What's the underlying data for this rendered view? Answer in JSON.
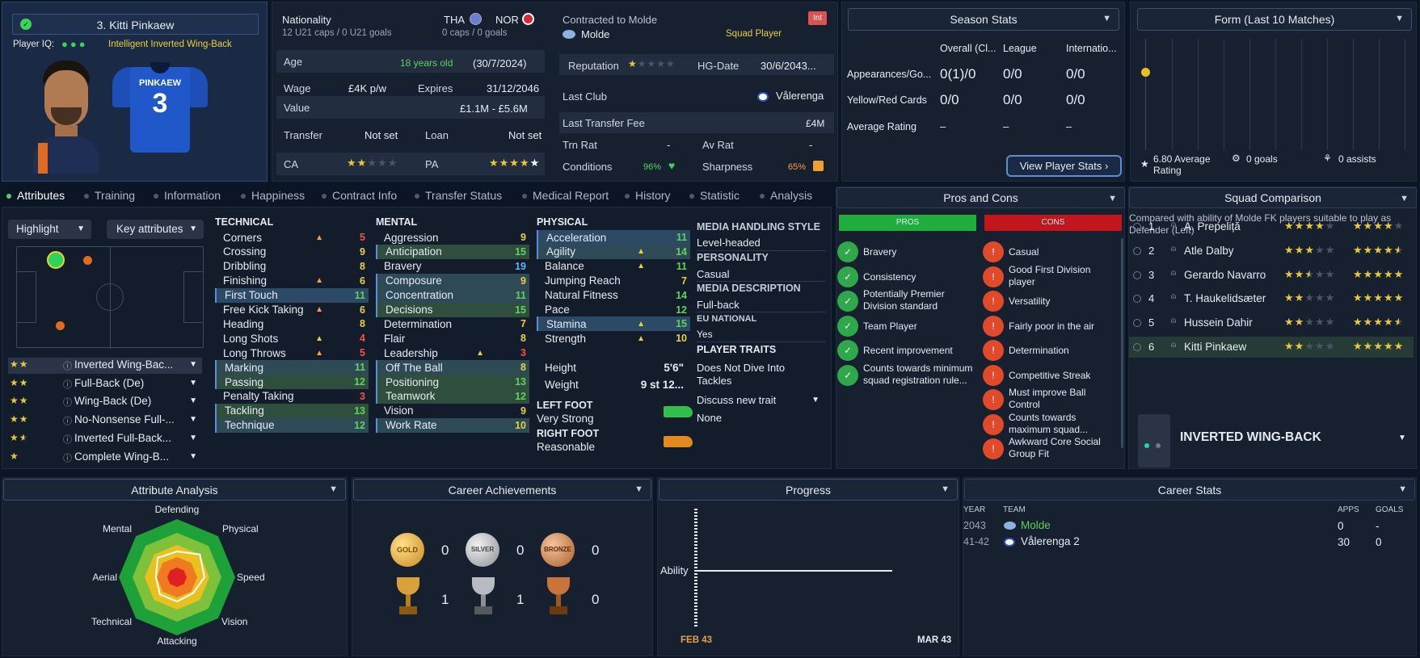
{
  "player": {
    "name": "3. Kitti Pinkaew",
    "iq_label": "Player IQ:",
    "iq_text": "Intelligent  Inverted Wing-Back",
    "shirt_name": "PINKAEW",
    "shirt_number": "3"
  },
  "info": {
    "nationality_label": "Nationality",
    "nat1": "THA",
    "nat2": "NOR",
    "u21": "12 U21 caps / 0 U21 goals",
    "caps": "0 caps / 0 goals",
    "age_label": "Age",
    "age": "18 years old",
    "dob": "(30/7/2024)",
    "wage_label": "Wage",
    "wage": "£4K p/w",
    "expires_label": "Expires",
    "expires": "31/12/2046",
    "value_label": "Value",
    "value": "£1.1M - £5.6M",
    "transfer_label": "Transfer",
    "transfer": "Not set",
    "loan_label": "Loan",
    "loan": "Not set",
    "ca_label": "CA",
    "pa_label": "PA"
  },
  "contract": {
    "label": "Contracted to Molde",
    "club": "Molde",
    "status": "Squad Player",
    "badge": "Int",
    "rep_label": "Reputation",
    "hg_label": "HG-Date",
    "hg": "30/6/2043...",
    "last_club_label": "Last Club",
    "last_club": "Vålerenga",
    "fee_label": "Last Transfer Fee",
    "fee": "£4M",
    "trn_label": "Trn Rat",
    "trn": "-",
    "av_label": "Av Rat",
    "av": "-",
    "cond_label": "Conditions",
    "cond": "96%",
    "sharp_label": "Sharpness",
    "sharp": "65%"
  },
  "season": {
    "title": "Season Stats",
    "cols": [
      "Overall (Cl...",
      "League",
      "Internatio..."
    ],
    "rows": [
      {
        "label": "Appearances/Go...",
        "v": [
          "0(1)/0",
          "0/0",
          "0/0"
        ]
      },
      {
        "label": "Yellow/Red Cards",
        "v": [
          "0/0",
          "0/0",
          "0/0"
        ]
      },
      {
        "label": "Average Rating",
        "v": [
          "–",
          "–",
          "–"
        ]
      }
    ],
    "button": "View Player Stats"
  },
  "form": {
    "title": "Form (Last 10 Matches)",
    "avg": "6.80 Average Rating",
    "goals": "0 goals",
    "assists": "0 assists"
  },
  "tabs": [
    "Attributes",
    "Training",
    "Information",
    "Happiness",
    "Contract Info",
    "Transfer Status",
    "Medical Report",
    "History",
    "Statistic",
    "Analysis"
  ],
  "left": {
    "highlight": "Highlight",
    "key": "Key attributes",
    "roles": [
      {
        "name": "Inverted Wing-Bac...",
        "stars": 2
      },
      {
        "name": "Full-Back (De)",
        "stars": 2
      },
      {
        "name": "Wing-Back (De)",
        "stars": 2
      },
      {
        "name": "No-Nonsense Full-...",
        "stars": 2
      },
      {
        "name": "Inverted Full-Back...",
        "stars": 1.5
      },
      {
        "name": "Complete Wing-B...",
        "stars": 1
      }
    ]
  },
  "technical": {
    "title": "TECHNICAL",
    "items": [
      {
        "name": "Corners",
        "v": "5",
        "c": "r",
        "arr": "up-o",
        "hl": ""
      },
      {
        "name": "Crossing",
        "v": "9",
        "c": "y",
        "arr": "",
        "hl": ""
      },
      {
        "name": "Dribbling",
        "v": "8",
        "c": "y",
        "arr": "",
        "hl": ""
      },
      {
        "name": "Finishing",
        "v": "6",
        "c": "y",
        "arr": "up-o",
        "hl": ""
      },
      {
        "name": "First Touch",
        "v": "11",
        "c": "g",
        "arr": "",
        "hl": "hl"
      },
      {
        "name": "Free Kick Taking",
        "v": "6",
        "c": "y",
        "arr": "up-o",
        "hl": ""
      },
      {
        "name": "Heading",
        "v": "8",
        "c": "y",
        "arr": "",
        "hl": ""
      },
      {
        "name": "Long Shots",
        "v": "4",
        "c": "r",
        "arr": "up-y",
        "hl": ""
      },
      {
        "name": "Long Throws",
        "v": "5",
        "c": "r",
        "arr": "up-o",
        "hl": ""
      },
      {
        "name": "Marking",
        "v": "11",
        "c": "g",
        "arr": "",
        "hl": "hlb"
      },
      {
        "name": "Passing",
        "v": "12",
        "c": "g",
        "arr": "",
        "hl": "hlg"
      },
      {
        "name": "Penalty Taking",
        "v": "3",
        "c": "r",
        "arr": "",
        "hl": ""
      },
      {
        "name": "Tackling",
        "v": "13",
        "c": "g",
        "arr": "",
        "hl": "hlg"
      },
      {
        "name": "Technique",
        "v": "12",
        "c": "g",
        "arr": "",
        "hl": "hlb"
      }
    ]
  },
  "mental": {
    "title": "MENTAL",
    "items": [
      {
        "name": "Aggression",
        "v": "9",
        "c": "y",
        "arr": "",
        "hl": ""
      },
      {
        "name": "Anticipation",
        "v": "15",
        "c": "g",
        "arr": "",
        "hl": "hlg"
      },
      {
        "name": "Bravery",
        "v": "19",
        "c": "cy",
        "arr": "",
        "hl": ""
      },
      {
        "name": "Composure",
        "v": "9",
        "c": "y",
        "arr": "",
        "hl": "hlb"
      },
      {
        "name": "Concentration",
        "v": "11",
        "c": "g",
        "arr": "",
        "hl": "hlb"
      },
      {
        "name": "Decisions",
        "v": "15",
        "c": "g",
        "arr": "",
        "hl": "hlg"
      },
      {
        "name": "Determination",
        "v": "7",
        "c": "y",
        "arr": "",
        "hl": ""
      },
      {
        "name": "Flair",
        "v": "8",
        "c": "y",
        "arr": "",
        "hl": ""
      },
      {
        "name": "Leadership",
        "v": "3",
        "c": "r",
        "arr": "up-y",
        "hl": ""
      },
      {
        "name": "Off The Ball",
        "v": "8",
        "c": "y",
        "arr": "",
        "hl": "hlb"
      },
      {
        "name": "Positioning",
        "v": "13",
        "c": "g",
        "arr": "",
        "hl": "hlg"
      },
      {
        "name": "Teamwork",
        "v": "12",
        "c": "g",
        "arr": "",
        "hl": "hlg"
      },
      {
        "name": "Vision",
        "v": "9",
        "c": "y",
        "arr": "",
        "hl": ""
      },
      {
        "name": "Work Rate",
        "v": "10",
        "c": "y",
        "arr": "",
        "hl": "hlb"
      }
    ]
  },
  "physical": {
    "title": "PHYSICAL",
    "items": [
      {
        "name": "Acceleration",
        "v": "11",
        "c": "g",
        "arr": "",
        "hl": "hl"
      },
      {
        "name": "Agility",
        "v": "14",
        "c": "g",
        "arr": "up-y",
        "hl": "hlb"
      },
      {
        "name": "Balance",
        "v": "11",
        "c": "g",
        "arr": "up-y",
        "hl": ""
      },
      {
        "name": "Jumping Reach",
        "v": "7",
        "c": "y",
        "arr": "",
        "hl": ""
      },
      {
        "name": "Natural Fitness",
        "v": "14",
        "c": "g",
        "arr": "",
        "hl": ""
      },
      {
        "name": "Pace",
        "v": "12",
        "c": "g",
        "arr": "",
        "hl": ""
      },
      {
        "name": "Stamina",
        "v": "15",
        "c": "g",
        "arr": "up-y",
        "hl": "hl"
      },
      {
        "name": "Strength",
        "v": "10",
        "c": "y",
        "arr": "up-y",
        "hl": ""
      }
    ],
    "height_label": "Height",
    "height": "5'6\"",
    "weight_label": "Weight",
    "weight": "9 st 12...",
    "lf_label": "LEFT FOOT",
    "lf": "Very Strong",
    "rf_label": "RIGHT FOOT",
    "rf": "Reasonable"
  },
  "media": {
    "mhs_label": "MEDIA HANDLING STYLE",
    "mhs": "Level-headed",
    "pers_label": "PERSONALITY",
    "pers": "Casual",
    "desc_label": "MEDIA DESCRIPTION",
    "desc": "Full-back",
    "eu_label": "EU NATIONAL",
    "eu": "Yes",
    "traits_label": "PLAYER TRAITS",
    "trait1": "Does Not Dive Into Tackles",
    "discuss": "Discuss new trait",
    "none": "None"
  },
  "pros_cons": {
    "title": "Pros and Cons",
    "pros_label": "PROS",
    "cons_label": "CONS",
    "pros": [
      "Bravery",
      "Consistency",
      "Potentially Premier Division standard",
      "Team Player",
      "Recent improvement",
      "Counts towards minimum squad registration rule..."
    ],
    "cons": [
      "Casual",
      "Good First Division player",
      "Versatility",
      "Fairly poor in the air",
      "Determination",
      "Competitive Streak",
      "Must improve Ball Control",
      "Counts towards maximum squad...",
      "Awkward Core Social Group Fit"
    ]
  },
  "squad": {
    "title": "Squad Comparison",
    "desc": "Compared with ability of Molde FK players suitable to play as Defender (Left)",
    "rows": [
      {
        "rank": "1",
        "name": "A. Prepeliță",
        "ca": 4,
        "pa": 4
      },
      {
        "rank": "2",
        "name": "Atle Dalby",
        "ca": 3,
        "pa": 4.5
      },
      {
        "rank": "3",
        "name": "Gerardo Navarro",
        "ca": 2.5,
        "pa": 5
      },
      {
        "rank": "4",
        "name": "T. Haukelidsæter",
        "ca": 2,
        "pa": 5
      },
      {
        "rank": "5",
        "name": "Hussein Dahir",
        "ca": 2,
        "pa": 4.5
      },
      {
        "rank": "6",
        "name": "Kitti Pinkaew",
        "ca": 2,
        "pa": 5
      }
    ],
    "role": "INVERTED WING-BACK"
  },
  "analysis": {
    "title": "Attribute Analysis",
    "labels": [
      "Defending",
      "Physical",
      "Speed",
      "Vision",
      "Attacking",
      "Technical",
      "Aerial",
      "Mental"
    ]
  },
  "achievements": {
    "title": "Career Achievements",
    "gold": "0",
    "silver": "0",
    "bronze": "0",
    "t1": "1",
    "t2": "1",
    "t3": "0",
    "gold_l": "GOLD",
    "silver_l": "SILVER",
    "bronze_l": "BRONZE"
  },
  "progress": {
    "title": "Progress",
    "ylabel": "Ability",
    "x_start": "FEB 43",
    "x_end": "MAR 43"
  },
  "career": {
    "title": "Career Stats",
    "cols": [
      "YEAR",
      "TEAM",
      "APPS",
      "GOALS"
    ],
    "rows": [
      {
        "year": "2043",
        "team": "Molde",
        "apps": "0",
        "goals": "-"
      },
      {
        "year": "41-42",
        "team": "Vålerenga 2",
        "apps": "30",
        "goals": "0"
      }
    ]
  },
  "colors": {
    "accent": "#4bd36b",
    "pros": "#1fae3e",
    "cons": "#c0161c"
  }
}
